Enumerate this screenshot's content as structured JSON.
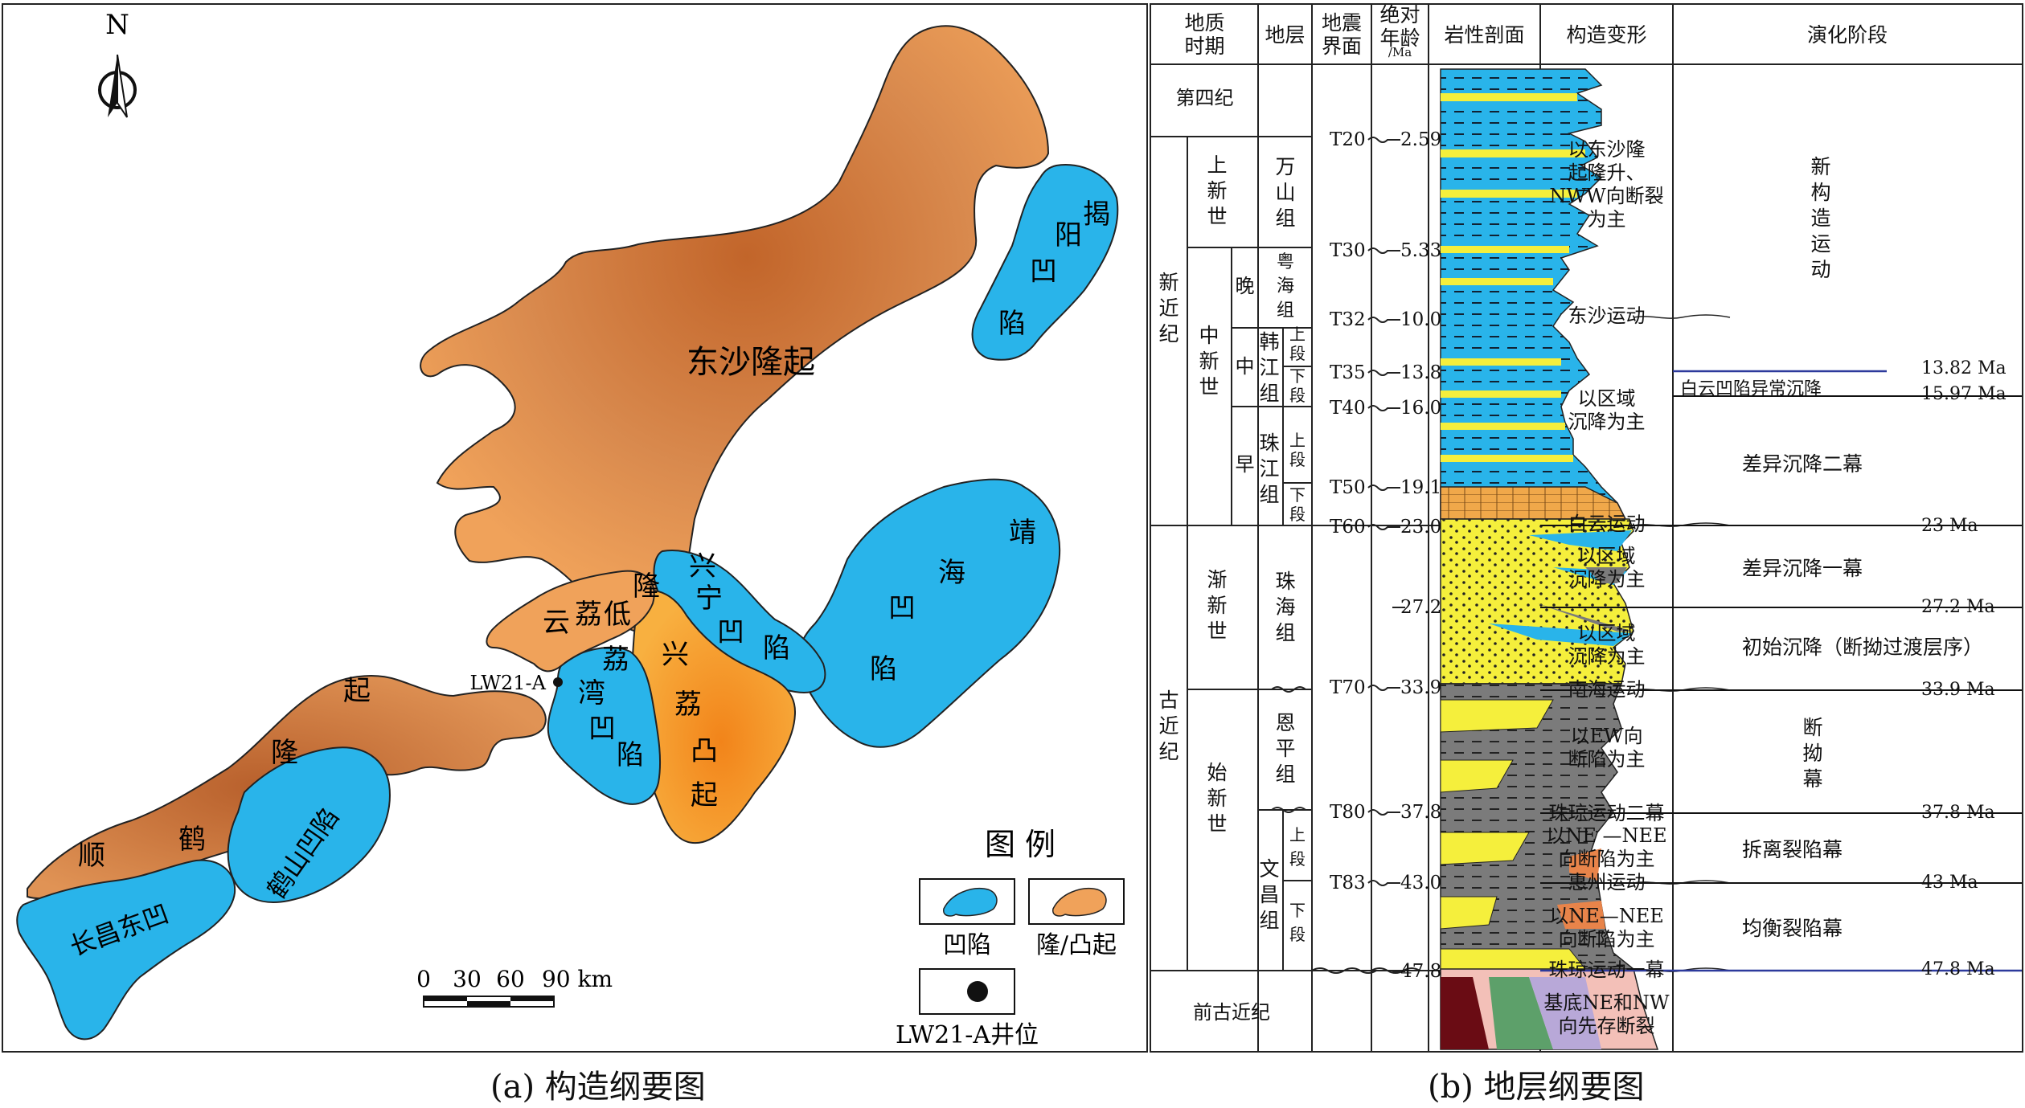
{
  "captions": {
    "left": "(a) 构造纲要图",
    "right": "(b) 地层纲要图"
  },
  "colors": {
    "depression": "#29b4ea",
    "uplift_dark": "#c8753f",
    "uplift_light": "#f0a25a",
    "convex": "#f5a020",
    "line_blue": "#2d3a9c"
  },
  "map": {
    "north": "N",
    "units": {
      "dongsha": "东沙隆起",
      "jieyang": [
        "揭",
        "阳",
        "凹",
        "陷"
      ],
      "jinghai": [
        "靖",
        "海",
        "凹",
        "陷"
      ],
      "xingning": [
        "兴",
        "宁",
        "凹",
        "陷"
      ],
      "xingli": [
        "兴",
        "荔",
        "凸",
        "起"
      ],
      "liwan": [
        "荔",
        "湾",
        "凹",
        "陷"
      ],
      "yunli": [
        "云",
        "荔",
        "低",
        "隆"
      ],
      "shunhe": [
        "顺",
        "鹤",
        "隆",
        "起"
      ],
      "heshan": "鹤山凹陷",
      "changchang": "长昌东凹"
    },
    "well": "LW21-A",
    "scale": {
      "ticks": [
        "0",
        "30",
        "60",
        "90 km"
      ]
    },
    "legend": {
      "title": "图 例",
      "depression": "凹陷",
      "uplift": "隆/凸起",
      "well": "LW21-A井位"
    }
  },
  "strat": {
    "headers": {
      "period": "地质\n时期",
      "stratum": "地层",
      "seismic": "地震\n界面",
      "age": "绝对\n年龄",
      "age_unit": "/Ma",
      "litho": "岩性剖面",
      "tectonic": "构造变形",
      "stage": "演化阶段"
    },
    "periods": {
      "quaternary": "第四纪",
      "neogene": [
        "新",
        "近",
        "纪"
      ],
      "paleogene": [
        "古",
        "近",
        "纪"
      ],
      "pre": "前古近纪"
    },
    "epochs": {
      "pliocene": [
        "上",
        "新",
        "世"
      ],
      "miocene": [
        "中",
        "新",
        "世"
      ],
      "oligocene": [
        "渐",
        "新",
        "世"
      ],
      "eocene": [
        "始",
        "新",
        "世"
      ]
    },
    "sub": {
      "late": "晚",
      "mid": "中",
      "early": "早"
    },
    "formations": {
      "wanshan": [
        "万",
        "山",
        "组"
      ],
      "yuehai": [
        "粤",
        "海",
        "组"
      ],
      "hanjiang": [
        "韩",
        "江",
        "组"
      ],
      "zhujiang": [
        "珠",
        "江",
        "组"
      ],
      "zhuhai": [
        "珠",
        "海",
        "组"
      ],
      "enping": [
        "恩",
        "平",
        "组"
      ],
      "wenchang": [
        "文",
        "昌",
        "组"
      ]
    },
    "members": {
      "upper": [
        "上",
        "段"
      ],
      "lower": [
        "下",
        "段"
      ]
    },
    "seismic": [
      "T20",
      "T30",
      "T32",
      "T35",
      "T40",
      "T50",
      "T60",
      "T70",
      "T80",
      "T83"
    ],
    "ages": [
      "2.59",
      "5.33",
      "10.0",
      "13.8",
      "16.0",
      "19.1",
      "23.0",
      "27.2",
      "33.9",
      "37.8",
      "43.0",
      "47.8"
    ],
    "tectonics": {
      "t1": "以东沙隆\n起隆升、\nNWW向断裂\n为主",
      "dongsha_move": "东沙运动",
      "t2": "以区域\n沉降为主",
      "baiyun_move": "白云运动",
      "t3": "以区域\n沉降为主",
      "t4": "以区域\n沉降为主",
      "nanhai_move": "南海运动",
      "t5": "以EW向\n断陷为主",
      "zhuqiong2": "珠琼运动二幕",
      "t6": "以NE —NEE\n向断陷为主",
      "huizhou": "惠州运动",
      "t7": "以NE—NEE\n向断陷为主",
      "zhuqiong1": "珠琼运动一幕",
      "t8": "基底NE和NW\n向先存断裂"
    },
    "stages": {
      "s1": [
        "新",
        "构",
        "造",
        "运",
        "动"
      ],
      "baiyun_sub": "白云凹陷异常沉降",
      "s2": "差异沉降二幕",
      "s3": "差异沉降一幕",
      "s4": "初始沉降（断拗过渡层序）",
      "s5": [
        "断",
        "拗",
        "幕"
      ],
      "s6": "拆离裂陷幕",
      "s7": "均衡裂陷幕"
    },
    "right_marks": [
      "13.82 Ma",
      "15.97 Ma",
      "23 Ma",
      "27.2 Ma",
      "33.9 Ma",
      "37.8 Ma",
      "43 Ma",
      "47.8 Ma"
    ]
  }
}
